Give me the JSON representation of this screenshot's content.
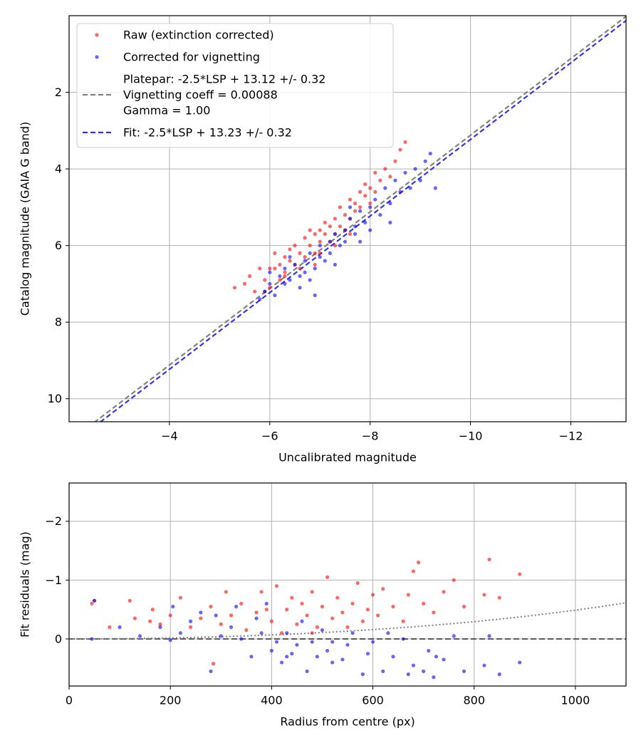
{
  "chart_data": [
    {
      "type": "scatter",
      "xlabel": "Uncalibrated magnitude",
      "ylabel": "Catalog magnitude (GAIA G band)",
      "xlim": [
        -2.0,
        -13.1
      ],
      "ylim": [
        0.0,
        10.6
      ],
      "x_inverted": true,
      "y_inverted": true,
      "xticks": [
        -4,
        -6,
        -8,
        -10,
        -12
      ],
      "xtick_labels": [
        "−4",
        "−6",
        "−8",
        "−10",
        "−12"
      ],
      "yticks": [
        2,
        4,
        6,
        8,
        10
      ],
      "ytick_labels": [
        "2",
        "4",
        "6",
        "8",
        "10"
      ],
      "grid": true,
      "legend_position": "top-left",
      "legend": [
        {
          "kind": "marker",
          "color": "#ff0000",
          "lines": [
            "Raw (extinction corrected)"
          ]
        },
        {
          "kind": "marker",
          "color": "#0000ff",
          "lines": [
            "Corrected for vignetting"
          ]
        },
        {
          "kind": "line",
          "color": "#808080",
          "lines": [
            "Platepar: -2.5*LSP + 13.12 +/- 0.32",
            "Vignetting coeff = 0.00088",
            "Gamma = 1.00"
          ]
        },
        {
          "kind": "line",
          "color": "#3333ee",
          "lines": [
            "Fit: -2.5*LSP + 13.23 +/- 0.32"
          ]
        }
      ],
      "lines": [
        {
          "name": "platepar",
          "slope": 1.0,
          "intercept": 13.12,
          "color": "#808080",
          "dashed": true
        },
        {
          "name": "fit",
          "slope": 1.0,
          "intercept": 13.23,
          "color": "#3333ee",
          "dashed": true
        }
      ],
      "series": [
        {
          "color": "#ff0000",
          "points": [
            [
              -5.3,
              7.1
            ],
            [
              -5.5,
              7.0
            ],
            [
              -5.6,
              6.8
            ],
            [
              -5.7,
              7.2
            ],
            [
              -5.8,
              6.6
            ],
            [
              -5.9,
              6.9
            ],
            [
              -6.0,
              6.6
            ],
            [
              -6.0,
              7.1
            ],
            [
              -6.1,
              6.2
            ],
            [
              -6.2,
              6.5
            ],
            [
              -6.2,
              6.9
            ],
            [
              -6.3,
              6.3
            ],
            [
              -6.3,
              6.7
            ],
            [
              -6.4,
              6.4
            ],
            [
              -6.5,
              6.0
            ],
            [
              -6.5,
              6.5
            ],
            [
              -6.6,
              6.2
            ],
            [
              -6.6,
              6.6
            ],
            [
              -6.7,
              5.8
            ],
            [
              -6.7,
              6.3
            ],
            [
              -6.8,
              6.0
            ],
            [
              -6.8,
              5.6
            ],
            [
              -6.9,
              5.7
            ],
            [
              -6.9,
              6.2
            ],
            [
              -7.0,
              5.6
            ],
            [
              -7.0,
              5.9
            ],
            [
              -7.1,
              5.4
            ],
            [
              -7.1,
              5.7
            ],
            [
              -7.2,
              5.5
            ],
            [
              -7.2,
              5.9
            ],
            [
              -7.3,
              5.3
            ],
            [
              -7.3,
              5.7
            ],
            [
              -7.4,
              5.0
            ],
            [
              -7.4,
              5.5
            ],
            [
              -7.5,
              5.2
            ],
            [
              -7.5,
              5.6
            ],
            [
              -7.6,
              4.8
            ],
            [
              -7.6,
              5.3
            ],
            [
              -7.7,
              4.9
            ],
            [
              -7.7,
              5.1
            ],
            [
              -7.8,
              4.6
            ],
            [
              -7.8,
              5.0
            ],
            [
              -7.9,
              4.7
            ],
            [
              -7.9,
              4.4
            ],
            [
              -8.0,
              4.5
            ],
            [
              -8.0,
              4.9
            ],
            [
              -8.1,
              4.1
            ],
            [
              -8.1,
              4.6
            ],
            [
              -8.2,
              4.3
            ],
            [
              -8.3,
              4.0
            ],
            [
              -8.4,
              4.2
            ],
            [
              -8.5,
              3.8
            ],
            [
              -8.6,
              3.5
            ],
            [
              -8.7,
              3.3
            ],
            [
              -6.3,
              6.8
            ],
            [
              -6.4,
              6.1
            ],
            [
              -6.9,
              6.5
            ],
            [
              -7.0,
              6.2
            ],
            [
              -5.9,
              7.2
            ],
            [
              -6.1,
              6.6
            ],
            [
              -7.3,
              6.0
            ],
            [
              -7.6,
              5.7
            ]
          ]
        },
        {
          "color": "#0000ff",
          "points": [
            [
              -5.8,
              7.4
            ],
            [
              -5.9,
              7.2
            ],
            [
              -6.0,
              7.0
            ],
            [
              -6.1,
              7.3
            ],
            [
              -6.2,
              6.8
            ],
            [
              -6.3,
              7.0
            ],
            [
              -6.3,
              6.6
            ],
            [
              -6.4,
              6.9
            ],
            [
              -6.5,
              6.5
            ],
            [
              -6.6,
              6.8
            ],
            [
              -6.6,
              7.1
            ],
            [
              -6.7,
              6.4
            ],
            [
              -6.7,
              6.7
            ],
            [
              -6.8,
              6.2
            ],
            [
              -6.9,
              6.6
            ],
            [
              -6.9,
              7.3
            ],
            [
              -7.0,
              6.3
            ],
            [
              -7.0,
              6.0
            ],
            [
              -7.1,
              6.4
            ],
            [
              -7.2,
              5.9
            ],
            [
              -7.2,
              6.2
            ],
            [
              -7.3,
              5.7
            ],
            [
              -7.4,
              6.0
            ],
            [
              -7.5,
              5.6
            ],
            [
              -7.5,
              5.9
            ],
            [
              -7.6,
              5.3
            ],
            [
              -7.7,
              5.7
            ],
            [
              -7.7,
              5.5
            ],
            [
              -7.8,
              5.1
            ],
            [
              -7.9,
              5.4
            ],
            [
              -8.0,
              5.0
            ],
            [
              -8.0,
              5.6
            ],
            [
              -8.1,
              4.8
            ],
            [
              -8.2,
              5.2
            ],
            [
              -8.3,
              4.5
            ],
            [
              -8.4,
              4.9
            ],
            [
              -8.4,
              5.4
            ],
            [
              -8.5,
              4.3
            ],
            [
              -8.6,
              4.6
            ],
            [
              -8.7,
              4.1
            ],
            [
              -8.8,
              4.5
            ],
            [
              -8.9,
              4.0
            ],
            [
              -9.0,
              4.3
            ],
            [
              -9.1,
              3.8
            ],
            [
              -9.2,
              3.6
            ],
            [
              -9.3,
              4.5
            ],
            [
              -6.4,
              6.3
            ],
            [
              -6.8,
              6.9
            ],
            [
              -7.3,
              6.5
            ],
            [
              -7.8,
              5.9
            ],
            [
              -6.0,
              6.7
            ],
            [
              -7.6,
              5.0
            ]
          ]
        }
      ]
    },
    {
      "type": "scatter",
      "xlabel": "Radius from centre (px)",
      "ylabel": "Fit residuals (mag)",
      "xlim": [
        0,
        1100
      ],
      "ylim": [
        -2.65,
        0.8
      ],
      "xticks": [
        0,
        200,
        400,
        600,
        800,
        1000
      ],
      "xtick_labels": [
        "0",
        "200",
        "400",
        "600",
        "800",
        "1000"
      ],
      "yticks": [
        0,
        -1,
        -2
      ],
      "ytick_labels": [
        "0",
        "−1",
        "−2"
      ],
      "grid": true,
      "reference_line": {
        "y": 0,
        "color": "#555555",
        "dashed": true
      },
      "vignetting_curve": {
        "coeff": 0.00088,
        "color": "#808080",
        "dotted": true
      },
      "series": [
        {
          "color": "#ff0000",
          "points": [
            [
              45,
              -0.6
            ],
            [
              50,
              -0.65
            ],
            [
              80,
              -0.2
            ],
            [
              120,
              -0.65
            ],
            [
              130,
              -0.35
            ],
            [
              160,
              -0.3
            ],
            [
              165,
              -0.5
            ],
            [
              180,
              -0.25
            ],
            [
              200,
              -0.4
            ],
            [
              220,
              -0.7
            ],
            [
              240,
              -0.2
            ],
            [
              260,
              -0.35
            ],
            [
              280,
              -0.55
            ],
            [
              285,
              0.42
            ],
            [
              300,
              -0.25
            ],
            [
              320,
              -0.4
            ],
            [
              340,
              -0.6
            ],
            [
              350,
              -0.15
            ],
            [
              370,
              -0.45
            ],
            [
              380,
              -0.8
            ],
            [
              400,
              -0.3
            ],
            [
              410,
              -0.9
            ],
            [
              420,
              -0.1
            ],
            [
              430,
              -0.5
            ],
            [
              440,
              -0.7
            ],
            [
              450,
              -0.25
            ],
            [
              460,
              -0.6
            ],
            [
              470,
              -0.4
            ],
            [
              480,
              -0.8
            ],
            [
              490,
              -0.2
            ],
            [
              500,
              -0.55
            ],
            [
              510,
              -1.05
            ],
            [
              520,
              -0.35
            ],
            [
              530,
              -0.7
            ],
            [
              540,
              -0.45
            ],
            [
              560,
              -0.6
            ],
            [
              570,
              -0.95
            ],
            [
              580,
              -0.3
            ],
            [
              590,
              -0.5
            ],
            [
              600,
              -0.75
            ],
            [
              610,
              -0.4
            ],
            [
              620,
              -0.85
            ],
            [
              640,
              -0.55
            ],
            [
              660,
              -0.3
            ],
            [
              670,
              -0.75
            ],
            [
              680,
              -1.15
            ],
            [
              690,
              -1.3
            ],
            [
              700,
              -0.6
            ],
            [
              720,
              -0.45
            ],
            [
              740,
              -0.8
            ],
            [
              760,
              -1.0
            ],
            [
              780,
              -0.55
            ],
            [
              820,
              -0.75
            ],
            [
              830,
              -1.35
            ],
            [
              850,
              -0.7
            ],
            [
              890,
              -1.1
            ],
            [
              310,
              -0.8
            ],
            [
              390,
              -0.5
            ],
            [
              480,
              -0.1
            ],
            [
              550,
              -0.2
            ]
          ]
        },
        {
          "color": "#0000ff",
          "points": [
            [
              45,
              0.0
            ],
            [
              50,
              -0.65
            ],
            [
              100,
              -0.2
            ],
            [
              140,
              -0.05
            ],
            [
              180,
              -0.2
            ],
            [
              200,
              0.02
            ],
            [
              205,
              -0.55
            ],
            [
              220,
              -0.1
            ],
            [
              240,
              -0.3
            ],
            [
              280,
              0.55
            ],
            [
              290,
              -0.4
            ],
            [
              300,
              -0.05
            ],
            [
              320,
              -0.2
            ],
            [
              340,
              0.0
            ],
            [
              360,
              0.3
            ],
            [
              370,
              -0.35
            ],
            [
              380,
              -0.1
            ],
            [
              390,
              -0.6
            ],
            [
              400,
              0.2
            ],
            [
              410,
              0.05
            ],
            [
              420,
              0.4
            ],
            [
              430,
              -0.1
            ],
            [
              440,
              0.25
            ],
            [
              450,
              0.1
            ],
            [
              460,
              -0.3
            ],
            [
              470,
              0.55
            ],
            [
              480,
              0.05
            ],
            [
              490,
              0.3
            ],
            [
              500,
              -0.15
            ],
            [
              510,
              0.2
            ],
            [
              520,
              0.4
            ],
            [
              540,
              0.35
            ],
            [
              550,
              0.1
            ],
            [
              560,
              -0.1
            ],
            [
              580,
              0.6
            ],
            [
              590,
              0.25
            ],
            [
              600,
              0.05
            ],
            [
              620,
              0.55
            ],
            [
              640,
              0.3
            ],
            [
              660,
              0.0
            ],
            [
              670,
              0.6
            ],
            [
              680,
              0.45
            ],
            [
              700,
              0.55
            ],
            [
              710,
              0.2
            ],
            [
              720,
              0.65
            ],
            [
              740,
              0.35
            ],
            [
              760,
              -0.05
            ],
            [
              780,
              0.55
            ],
            [
              820,
              0.45
            ],
            [
              830,
              -0.05
            ],
            [
              850,
              0.6
            ],
            [
              890,
              0.4
            ],
            [
              260,
              -0.45
            ],
            [
              330,
              -0.55
            ],
            [
              430,
              0.3
            ],
            [
              520,
              0.05
            ],
            [
              630,
              -0.1
            ],
            [
              725,
              0.3
            ]
          ]
        }
      ]
    }
  ]
}
